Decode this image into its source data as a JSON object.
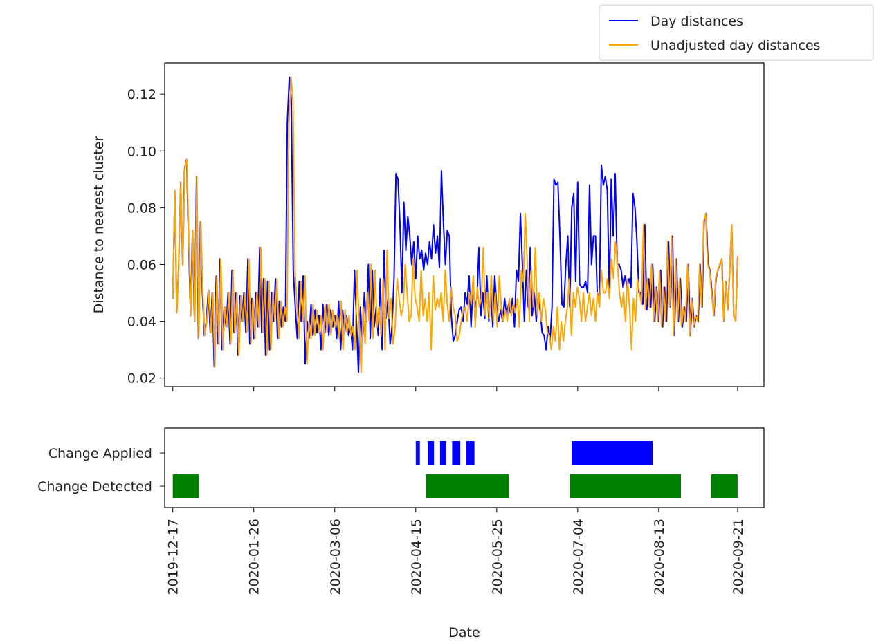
{
  "chart_data": [
    {
      "type": "line",
      "title": "",
      "xlabel": "",
      "ylabel": "Distance to nearest cluster",
      "x_start": "2019-12-17",
      "x_end": "2020-09-21",
      "xlim": [
        "2019-12-13",
        "2020-10-04"
      ],
      "ylim": [
        0.017,
        0.131
      ],
      "yticks": [
        0.02,
        0.04,
        0.06,
        0.08,
        0.1,
        0.12
      ],
      "ytick_labels": [
        "0.02",
        "0.04",
        "0.06",
        "0.08",
        "0.10",
        "0.12"
      ],
      "grid": false,
      "legend": "upper right, outside axes",
      "series": [
        {
          "name": "Day distances",
          "color": "#0000ff",
          "values": [
            0.048,
            0.086,
            0.043,
            0.06,
            0.089,
            0.06,
            0.094,
            0.097,
            0.068,
            0.042,
            0.072,
            0.04,
            0.091,
            0.034,
            0.075,
            0.05,
            0.035,
            0.04,
            0.051,
            0.036,
            0.05,
            0.024,
            0.056,
            0.032,
            0.062,
            0.03,
            0.045,
            0.038,
            0.05,
            0.032,
            0.058,
            0.036,
            0.05,
            0.028,
            0.049,
            0.04,
            0.05,
            0.036,
            0.062,
            0.032,
            0.048,
            0.034,
            0.05,
            0.038,
            0.066,
            0.036,
            0.055,
            0.028,
            0.054,
            0.03,
            0.05,
            0.04,
            0.055,
            0.034,
            0.047,
            0.038,
            0.045,
            0.04,
            0.11,
            0.126,
            0.118,
            0.058,
            0.045,
            0.034,
            0.054,
            0.04,
            0.056,
            0.025,
            0.04,
            0.034,
            0.046,
            0.035,
            0.044,
            0.036,
            0.042,
            0.03,
            0.046,
            0.036,
            0.046,
            0.035,
            0.044,
            0.038,
            0.042,
            0.034,
            0.047,
            0.03,
            0.044,
            0.036,
            0.042,
            0.035,
            0.038,
            0.03,
            0.058,
            0.04,
            0.022,
            0.045,
            0.032,
            0.05,
            0.04,
            0.06,
            0.034,
            0.058,
            0.038,
            0.045,
            0.035,
            0.055,
            0.03,
            0.065,
            0.041,
            0.048,
            0.032,
            0.038,
            0.055,
            0.092,
            0.09,
            0.075,
            0.05,
            0.082,
            0.065,
            0.077,
            0.07,
            0.06,
            0.068,
            0.055,
            0.07,
            0.062,
            0.065,
            0.058,
            0.064,
            0.06,
            0.068,
            0.062,
            0.074,
            0.064,
            0.07,
            0.059,
            0.093,
            0.075,
            0.06,
            0.072,
            0.07,
            0.042,
            0.033,
            0.035,
            0.04,
            0.044,
            0.045,
            0.04,
            0.05,
            0.046,
            0.056,
            0.038,
            0.052,
            0.045,
            0.048,
            0.066,
            0.042,
            0.05,
            0.041,
            0.056,
            0.04,
            0.05,
            0.038,
            0.056,
            0.045,
            0.04,
            0.044,
            0.04,
            0.048,
            0.042,
            0.046,
            0.043,
            0.048,
            0.038,
            0.058,
            0.054,
            0.078,
            0.06,
            0.04,
            0.058,
            0.045,
            0.066,
            0.042,
            0.05,
            0.04,
            0.048,
            0.044,
            0.036,
            0.035,
            0.03,
            0.038,
            0.033,
            0.045,
            0.09,
            0.088,
            0.089,
            0.07,
            0.046,
            0.045,
            0.06,
            0.07,
            0.045,
            0.08,
            0.085,
            0.054,
            0.089,
            0.053,
            0.052,
            0.052,
            0.054,
            0.05,
            0.088,
            0.06,
            0.07,
            0.07,
            0.048,
            0.05,
            0.095,
            0.088,
            0.091,
            0.086,
            0.05,
            0.09,
            0.07,
            0.092,
            0.06,
            0.06,
            0.058,
            0.052,
            0.056,
            0.052,
            0.055,
            0.052,
            0.085,
            0.08,
            0.068,
            0.05,
            0.05,
            0.046,
            0.074,
            0.044,
            0.055,
            0.045,
            0.06,
            0.04,
            0.052,
            0.04,
            0.058,
            0.038,
            0.052,
            0.04,
            0.068,
            0.045,
            0.07,
            0.035,
            0.062,
            0.04,
            0.055,
            0.038,
            0.045,
            0.04,
            0.06,
            0.035,
            0.048,
            0.038,
            0.042,
            0.04,
            0.06,
            0.045,
            0.075,
            0.078,
            0.06,
            0.058,
            0.05,
            0.042,
            0.055,
            0.058,
            0.06,
            0.062,
            0.04,
            0.054,
            0.044,
            0.058,
            0.074,
            0.042,
            0.04,
            0.063
          ]
        },
        {
          "name": "Unadjusted day distances",
          "color": "#ffa500",
          "values": [
            0.048,
            0.086,
            0.043,
            0.06,
            0.089,
            0.06,
            0.094,
            0.097,
            0.068,
            0.042,
            0.072,
            0.04,
            0.091,
            0.034,
            0.075,
            0.05,
            0.035,
            0.04,
            0.051,
            0.036,
            0.05,
            0.024,
            0.056,
            0.032,
            0.062,
            0.03,
            0.045,
            0.038,
            0.05,
            0.032,
            0.058,
            0.036,
            0.05,
            0.028,
            0.049,
            0.04,
            0.05,
            0.036,
            0.062,
            0.032,
            0.048,
            0.034,
            0.05,
            0.038,
            0.066,
            0.036,
            0.055,
            0.028,
            0.054,
            0.03,
            0.05,
            0.04,
            0.055,
            0.034,
            0.047,
            0.038,
            0.045,
            0.04,
            0.11,
            0.126,
            0.118,
            0.058,
            0.045,
            0.034,
            0.054,
            0.04,
            0.056,
            0.025,
            0.04,
            0.034,
            0.046,
            0.035,
            0.044,
            0.036,
            0.042,
            0.03,
            0.046,
            0.036,
            0.046,
            0.035,
            0.044,
            0.038,
            0.042,
            0.034,
            0.047,
            0.03,
            0.044,
            0.036,
            0.042,
            0.035,
            0.038,
            0.03,
            0.058,
            0.04,
            0.022,
            0.045,
            0.032,
            0.05,
            0.04,
            0.06,
            0.034,
            0.058,
            0.038,
            0.045,
            0.035,
            0.055,
            0.03,
            0.065,
            0.041,
            0.048,
            0.032,
            0.038,
            0.055,
            0.048,
            0.042,
            0.045,
            0.06,
            0.05,
            0.04,
            0.042,
            0.062,
            0.048,
            0.045,
            0.04,
            0.058,
            0.042,
            0.048,
            0.04,
            0.05,
            0.03,
            0.056,
            0.044,
            0.048,
            0.045,
            0.05,
            0.04,
            0.058,
            0.046,
            0.04,
            0.052,
            0.045,
            0.042,
            0.033,
            0.035,
            0.04,
            0.044,
            0.045,
            0.04,
            0.05,
            0.046,
            0.056,
            0.038,
            0.052,
            0.045,
            0.048,
            0.066,
            0.042,
            0.05,
            0.041,
            0.056,
            0.04,
            0.05,
            0.038,
            0.056,
            0.045,
            0.04,
            0.044,
            0.04,
            0.048,
            0.042,
            0.046,
            0.043,
            0.048,
            0.038,
            0.058,
            0.054,
            0.078,
            0.06,
            0.04,
            0.058,
            0.045,
            0.066,
            0.042,
            0.05,
            0.04,
            0.048,
            0.044,
            0.036,
            0.035,
            0.03,
            0.038,
            0.033,
            0.045,
            0.03,
            0.04,
            0.033,
            0.04,
            0.045,
            0.055,
            0.035,
            0.05,
            0.045,
            0.052,
            0.048,
            0.04,
            0.05,
            0.04,
            0.045,
            0.05,
            0.042,
            0.048,
            0.04,
            0.05,
            0.045,
            0.058,
            0.05,
            0.05,
            0.055,
            0.048,
            0.062,
            0.055,
            0.068,
            0.06,
            0.05,
            0.045,
            0.05,
            0.04,
            0.055,
            0.045,
            0.03,
            0.048,
            0.04,
            0.055,
            0.05,
            0.046,
            0.074,
            0.044,
            0.055,
            0.045,
            0.06,
            0.04,
            0.052,
            0.04,
            0.058,
            0.038,
            0.052,
            0.04,
            0.068,
            0.045,
            0.07,
            0.035,
            0.062,
            0.04,
            0.055,
            0.038,
            0.045,
            0.04,
            0.06,
            0.035,
            0.048,
            0.038,
            0.042,
            0.04,
            0.06,
            0.045,
            0.075,
            0.078,
            0.06,
            0.058,
            0.05,
            0.042,
            0.055,
            0.058,
            0.06,
            0.062,
            0.04,
            0.054,
            0.044,
            0.058,
            0.074,
            0.042,
            0.04,
            0.063
          ]
        }
      ]
    },
    {
      "type": "bar",
      "title": "",
      "xlabel": "Date",
      "ylabel": "",
      "xlim": [
        "2019-12-13",
        "2020-10-04"
      ],
      "xticks": [
        "2019-12-17",
        "2020-01-26",
        "2020-03-06",
        "2020-04-15",
        "2020-05-25",
        "2020-07-04",
        "2020-08-13",
        "2020-09-21"
      ],
      "categories": [
        "Change Applied",
        "Change Detected"
      ],
      "series": [
        {
          "name": "Change Applied",
          "color": "#0000ff",
          "intervals": [
            [
              "2020-04-15",
              "2020-04-17"
            ],
            [
              "2020-04-21",
              "2020-04-24"
            ],
            [
              "2020-04-27",
              "2020-04-30"
            ],
            [
              "2020-05-03",
              "2020-05-07"
            ],
            [
              "2020-05-10",
              "2020-05-14"
            ],
            [
              "2020-07-01",
              "2020-08-10"
            ]
          ]
        },
        {
          "name": "Change Detected",
          "color": "#008000",
          "intervals": [
            [
              "2019-12-17",
              "2019-12-30"
            ],
            [
              "2020-04-20",
              "2020-05-31"
            ],
            [
              "2020-06-30",
              "2020-08-24"
            ],
            [
              "2020-09-08",
              "2020-09-21"
            ]
          ]
        }
      ]
    }
  ]
}
